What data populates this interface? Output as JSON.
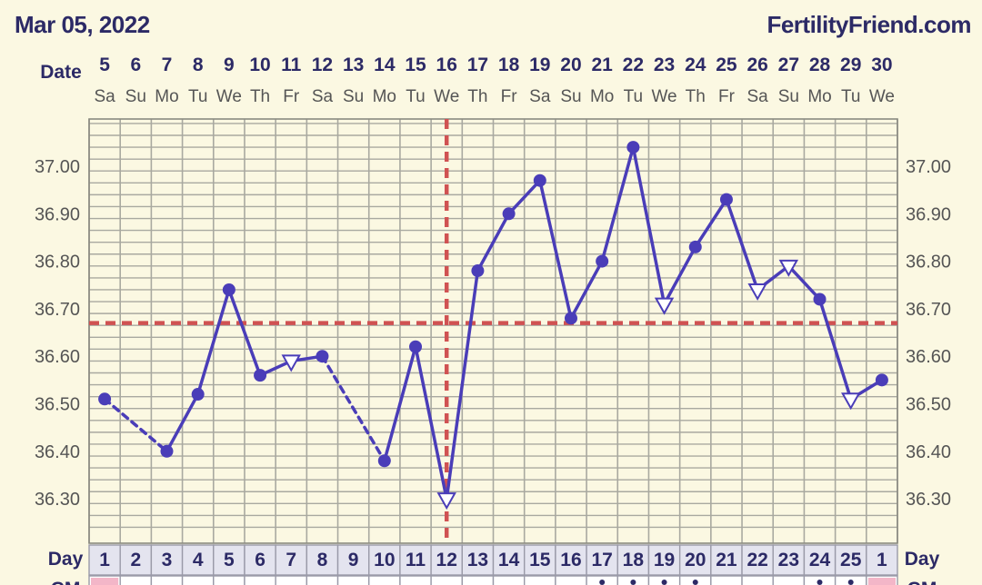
{
  "header": {
    "date": "Mar 05, 2022",
    "site": "FertilityFriend.com"
  },
  "row_labels": {
    "date": "Date",
    "day": "Day",
    "cm": "CM"
  },
  "colors": {
    "line": "#4a3db8",
    "coverline": "#d05252",
    "grid": "#a9a9a0",
    "cm_pink": "#f3b6c8",
    "day_row_bg": "#e4e4ef"
  },
  "cm_markers": [
    {
      "index": 0,
      "type": "pink"
    },
    {
      "index": 16,
      "type": "star"
    },
    {
      "index": 17,
      "type": "star"
    },
    {
      "index": 18,
      "type": "star"
    },
    {
      "index": 19,
      "type": "star"
    },
    {
      "index": 23,
      "type": "star"
    },
    {
      "index": 24,
      "type": "star"
    },
    {
      "index": 25,
      "type": "pink"
    }
  ],
  "chart_data": {
    "type": "line",
    "title": "",
    "dates": [
      "5",
      "6",
      "7",
      "8",
      "9",
      "10",
      "11",
      "12",
      "13",
      "14",
      "15",
      "16",
      "17",
      "18",
      "19",
      "20",
      "21",
      "22",
      "23",
      "24",
      "25",
      "26",
      "27",
      "28",
      "29",
      "30"
    ],
    "weekdays": [
      "Sa",
      "Su",
      "Mo",
      "Tu",
      "We",
      "Th",
      "Fr",
      "Sa",
      "Su",
      "Mo",
      "Tu",
      "We",
      "Th",
      "Fr",
      "Sa",
      "Su",
      "Mo",
      "Tu",
      "We",
      "Th",
      "Fr",
      "Sa",
      "Su",
      "Mo",
      "Tu",
      "We"
    ],
    "cycle_days": [
      "1",
      "2",
      "3",
      "4",
      "5",
      "6",
      "7",
      "8",
      "9",
      "10",
      "11",
      "12",
      "13",
      "14",
      "15",
      "16",
      "17",
      "18",
      "19",
      "20",
      "21",
      "22",
      "23",
      "24",
      "25",
      "1"
    ],
    "y_ticks": [
      "37.00",
      "36.90",
      "36.80",
      "36.70",
      "36.60",
      "36.50",
      "36.40",
      "36.30"
    ],
    "ylim": [
      36.24,
      37.09
    ],
    "coverline": 36.67,
    "ovulation_index": 11,
    "points": [
      {
        "i": 0,
        "y": 36.51,
        "m": "dot"
      },
      {
        "i": 2,
        "y": 36.4,
        "m": "dot"
      },
      {
        "i": 3,
        "y": 36.52,
        "m": "dot"
      },
      {
        "i": 4,
        "y": 36.74,
        "m": "dot"
      },
      {
        "i": 5,
        "y": 36.56,
        "m": "dot"
      },
      {
        "i": 6,
        "y": 36.59,
        "m": "tri"
      },
      {
        "i": 7,
        "y": 36.6,
        "m": "dot"
      },
      {
        "i": 9,
        "y": 36.38,
        "m": "dot"
      },
      {
        "i": 10,
        "y": 36.62,
        "m": "dot"
      },
      {
        "i": 11,
        "y": 36.3,
        "m": "tri"
      },
      {
        "i": 12,
        "y": 36.78,
        "m": "dot"
      },
      {
        "i": 13,
        "y": 36.9,
        "m": "dot"
      },
      {
        "i": 14,
        "y": 36.97,
        "m": "dot"
      },
      {
        "i": 15,
        "y": 36.68,
        "m": "dot"
      },
      {
        "i": 16,
        "y": 36.8,
        "m": "dot"
      },
      {
        "i": 17,
        "y": 37.04,
        "m": "dot"
      },
      {
        "i": 18,
        "y": 36.71,
        "m": "tri"
      },
      {
        "i": 19,
        "y": 36.83,
        "m": "dot"
      },
      {
        "i": 20,
        "y": 36.93,
        "m": "dot"
      },
      {
        "i": 21,
        "y": 36.74,
        "m": "tri"
      },
      {
        "i": 22,
        "y": 36.79,
        "m": "tri"
      },
      {
        "i": 23,
        "y": 36.72,
        "m": "dot"
      },
      {
        "i": 24,
        "y": 36.51,
        "m": "tri"
      },
      {
        "i": 25,
        "y": 36.55,
        "m": "dot"
      }
    ],
    "segments": [
      {
        "from": 0,
        "to": 2,
        "style": "dashed"
      },
      {
        "from": 2,
        "to": 3,
        "style": "solid"
      },
      {
        "from": 3,
        "to": 4,
        "style": "solid"
      },
      {
        "from": 4,
        "to": 5,
        "style": "solid"
      },
      {
        "from": 5,
        "to": 6,
        "style": "solid"
      },
      {
        "from": 6,
        "to": 7,
        "style": "solid"
      },
      {
        "from": 7,
        "to": 9,
        "style": "dashed"
      },
      {
        "from": 9,
        "to": 10,
        "style": "solid"
      },
      {
        "from": 10,
        "to": 11,
        "style": "solid"
      },
      {
        "from": 11,
        "to": 12,
        "style": "solid"
      },
      {
        "from": 12,
        "to": 13,
        "style": "solid"
      },
      {
        "from": 13,
        "to": 14,
        "style": "solid"
      },
      {
        "from": 14,
        "to": 15,
        "style": "solid"
      },
      {
        "from": 15,
        "to": 16,
        "style": "solid"
      },
      {
        "from": 16,
        "to": 17,
        "style": "solid"
      },
      {
        "from": 17,
        "to": 18,
        "style": "solid"
      },
      {
        "from": 18,
        "to": 19,
        "style": "solid"
      },
      {
        "from": 19,
        "to": 20,
        "style": "solid"
      },
      {
        "from": 20,
        "to": 21,
        "style": "solid"
      },
      {
        "from": 21,
        "to": 22,
        "style": "solid"
      },
      {
        "from": 22,
        "to": 23,
        "style": "solid"
      },
      {
        "from": 23,
        "to": 24,
        "style": "solid"
      },
      {
        "from": 24,
        "to": 25,
        "style": "solid"
      }
    ]
  }
}
